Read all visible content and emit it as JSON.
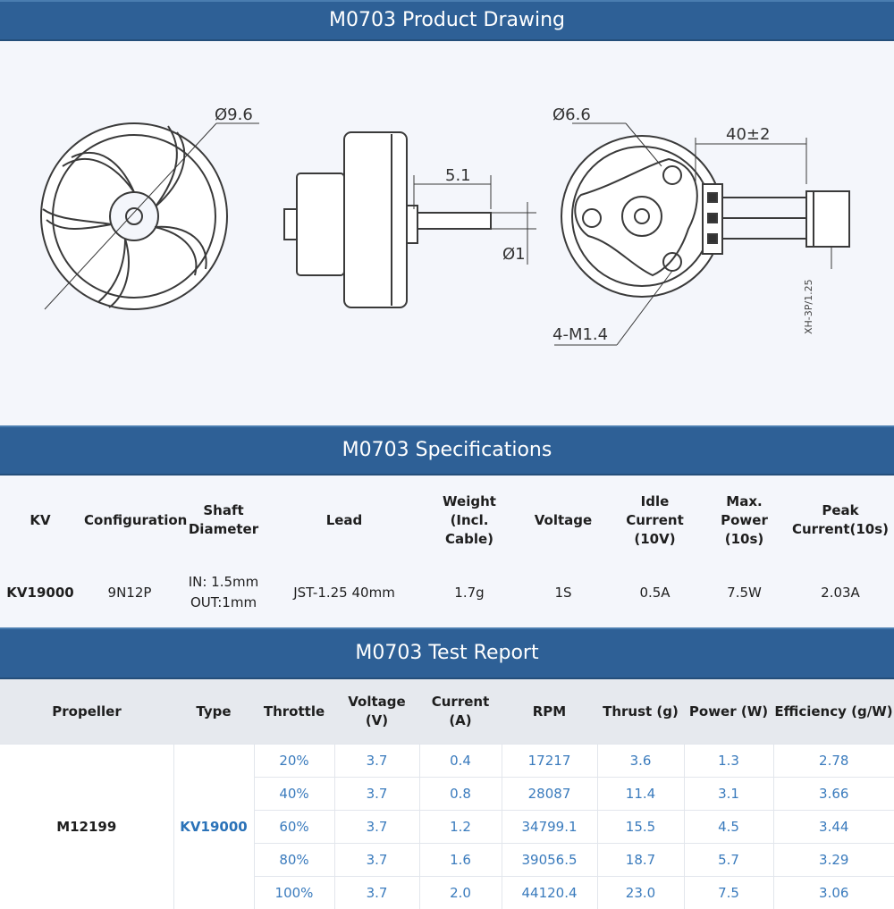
{
  "sections": {
    "drawing_title": "M0703 Product Drawing",
    "specs_title": "M0703 Specifications",
    "test_title": "M0703 Test Report"
  },
  "drawing": {
    "dim_outer_dia": "Ø9.6",
    "dim_shaft_len": "5.1",
    "dim_shaft_dia": "Ø1",
    "dim_base_dia": "Ø6.6",
    "dim_lead_len": "40±2",
    "dim_mount": "4-M1.4",
    "dim_connector": "XH-3P/1.25"
  },
  "specs": {
    "headers": [
      "KV",
      "Configuration",
      "Shaft Diameter",
      "Lead",
      "Weight (Incl. Cable)",
      "Voltage",
      "Idle Current (10V)",
      "Max. Power (10s)",
      "Peak Current(10s)"
    ],
    "row": {
      "kv": "KV19000",
      "config": "9N12P",
      "shaft_in": "IN: 1.5mm",
      "shaft_out": "OUT:1mm",
      "lead": "JST-1.25 40mm",
      "weight": "1.7g",
      "voltage": "1S",
      "idle": "0.5A",
      "max_power": "7.5W",
      "peak": "2.03A"
    }
  },
  "test": {
    "headers": [
      "Propeller",
      "Type",
      "Throttle",
      "Voltage (V)",
      "Current (A)",
      "RPM",
      "Thrust (g)",
      "Power (W)",
      "Efficiency (g/W)"
    ],
    "propeller": "M12199",
    "type": "KV19000",
    "rows": [
      [
        "20%",
        "3.7",
        "0.4",
        "17217",
        "3.6",
        "1.3",
        "2.78"
      ],
      [
        "40%",
        "3.7",
        "0.8",
        "28087",
        "11.4",
        "3.1",
        "3.66"
      ],
      [
        "60%",
        "3.7",
        "1.2",
        "34799.1",
        "15.5",
        "4.5",
        "3.44"
      ],
      [
        "80%",
        "3.7",
        "1.6",
        "39056.5",
        "18.7",
        "5.7",
        "3.29"
      ],
      [
        "100%",
        "3.7",
        "2.0",
        "44120.4",
        "23.0",
        "7.5",
        "3.06"
      ]
    ]
  }
}
